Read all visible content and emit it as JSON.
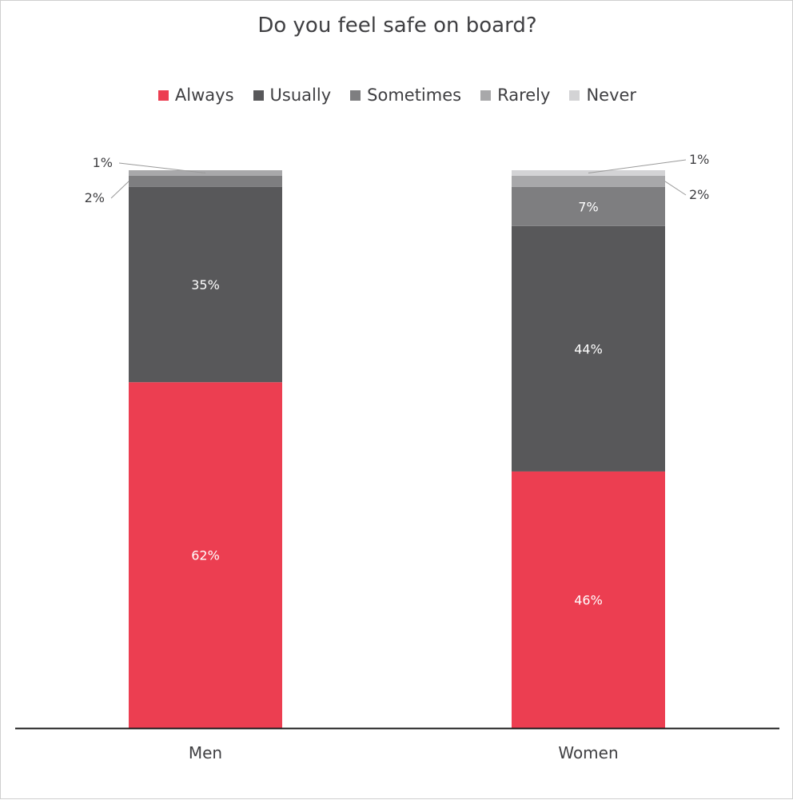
{
  "chart_data": {
    "type": "bar",
    "stacked": true,
    "title": "Do you feel safe on board?",
    "categories": [
      "Men",
      "Women"
    ],
    "series": [
      {
        "name": "Always",
        "color": "#ec3e51",
        "values": [
          62,
          46
        ],
        "labels": [
          "62%",
          "46%"
        ]
      },
      {
        "name": "Usually",
        "color": "#58585a",
        "values": [
          35,
          44
        ],
        "labels": [
          "35%",
          "44%"
        ]
      },
      {
        "name": "Sometimes",
        "color": "#7e7e80",
        "values": [
          2,
          7
        ],
        "labels": [
          "2%",
          "7%"
        ]
      },
      {
        "name": "Rarely",
        "color": "#a8a8aa",
        "values": [
          1,
          2
        ],
        "labels": [
          "1%",
          "2%"
        ]
      },
      {
        "name": "Never",
        "color": "#d3d3d5",
        "values": [
          0,
          1
        ],
        "labels": [
          "",
          "1%"
        ]
      }
    ],
    "ylim": [
      0,
      100
    ],
    "grid": false,
    "legend_position": "top"
  }
}
